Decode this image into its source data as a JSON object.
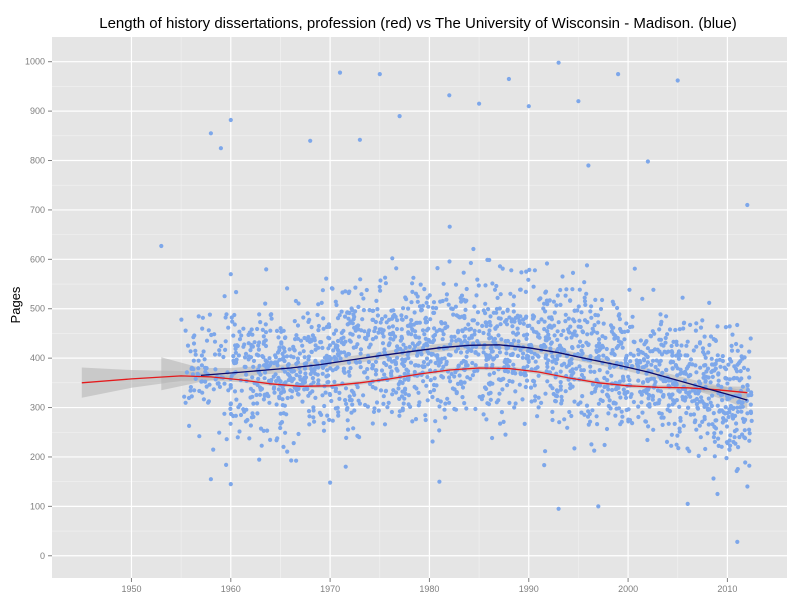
{
  "chart_data": {
    "type": "scatter",
    "title": "Length of history dissertations, profession (red) vs The University of Wisconsin - Madison. (blue)",
    "xlabel": "",
    "ylabel": "Pages",
    "xlim": [
      1942,
      2016
    ],
    "ylim": [
      -45,
      1050
    ],
    "x_ticks": [
      1950,
      1960,
      1970,
      1980,
      1990,
      2000,
      2010
    ],
    "y_ticks": [
      0,
      100,
      200,
      300,
      400,
      500,
      600,
      700,
      800,
      900,
      1000
    ],
    "grid": true,
    "legend": "none",
    "point_count": 2200,
    "series": [
      {
        "kind": "scatter",
        "color": "#7da7ea",
        "points": [
          [
            1953,
            627
          ],
          [
            1958,
            855
          ],
          [
            1959,
            825
          ],
          [
            1960,
            882
          ],
          [
            1960,
            570
          ],
          [
            1968,
            840
          ],
          [
            1971,
            978
          ],
          [
            1975,
            975
          ],
          [
            1973,
            842
          ],
          [
            1977,
            890
          ],
          [
            1982,
            932
          ],
          [
            1985,
            915
          ],
          [
            1988,
            965
          ],
          [
            1990,
            910
          ],
          [
            1993,
            998
          ],
          [
            1995,
            920
          ],
          [
            1999,
            975
          ],
          [
            2002,
            798
          ],
          [
            2005,
            962
          ],
          [
            1996,
            790
          ],
          [
            2012,
            710
          ],
          [
            2011,
            28
          ],
          [
            1993,
            95
          ],
          [
            2006,
            105
          ],
          [
            1981,
            150
          ],
          [
            1970,
            148
          ],
          [
            1960,
            145
          ],
          [
            1997,
            100
          ],
          [
            2009,
            125
          ],
          [
            1958,
            155
          ]
        ]
      },
      {
        "kind": "line",
        "color": "#e41a1c",
        "points": [
          [
            1945,
            350
          ],
          [
            1950,
            358
          ],
          [
            1955,
            364
          ],
          [
            1958,
            362
          ],
          [
            1961,
            356
          ],
          [
            1964,
            348
          ],
          [
            1967,
            343
          ],
          [
            1970,
            344
          ],
          [
            1973,
            350
          ],
          [
            1976,
            358
          ],
          [
            1979,
            368
          ],
          [
            1982,
            376
          ],
          [
            1985,
            380
          ],
          [
            1988,
            379
          ],
          [
            1991,
            372
          ],
          [
            1994,
            360
          ],
          [
            1997,
            350
          ],
          [
            2000,
            344
          ],
          [
            2003,
            341
          ],
          [
            2006,
            340
          ],
          [
            2009,
            336
          ],
          [
            2012,
            330
          ]
        ],
        "band": [
          [
            1945,
            320,
            381
          ],
          [
            1950,
            340,
            376
          ],
          [
            1955,
            354,
            374
          ],
          [
            1958,
            355,
            369
          ],
          [
            1961,
            351,
            361
          ],
          [
            1964,
            344,
            352
          ],
          [
            1967,
            339,
            347
          ],
          [
            1970,
            340,
            348
          ],
          [
            1973,
            346,
            354
          ],
          [
            1976,
            354,
            362
          ],
          [
            1979,
            364,
            372
          ],
          [
            1982,
            372,
            380
          ],
          [
            1985,
            376,
            384
          ],
          [
            1988,
            375,
            383
          ],
          [
            1991,
            368,
            376
          ],
          [
            1994,
            356,
            364
          ],
          [
            1997,
            346,
            354
          ],
          [
            2000,
            340,
            348
          ],
          [
            2003,
            337,
            345
          ],
          [
            2006,
            335,
            345
          ],
          [
            2009,
            329,
            343
          ],
          [
            2012,
            318,
            342
          ]
        ]
      },
      {
        "kind": "line",
        "color": "#0b0b6e",
        "points": [
          [
            1957,
            365
          ],
          [
            1960,
            370
          ],
          [
            1963,
            375
          ],
          [
            1966,
            380
          ],
          [
            1969,
            387
          ],
          [
            1972,
            396
          ],
          [
            1975,
            405
          ],
          [
            1978,
            413
          ],
          [
            1981,
            421
          ],
          [
            1984,
            426
          ],
          [
            1987,
            427
          ],
          [
            1990,
            421
          ],
          [
            1993,
            411
          ],
          [
            1996,
            398
          ],
          [
            1999,
            386
          ],
          [
            2002,
            372
          ],
          [
            2005,
            355
          ],
          [
            2008,
            338
          ],
          [
            2010,
            327
          ],
          [
            2012,
            315
          ]
        ],
        "band": [
          [
            1953,
            335,
            402
          ],
          [
            1957,
            352,
            380
          ],
          [
            1960,
            360,
            380
          ],
          [
            1963,
            366,
            384
          ],
          [
            1966,
            372,
            388
          ],
          [
            1969,
            379,
            395
          ],
          [
            1972,
            388,
            404
          ],
          [
            1975,
            397,
            413
          ],
          [
            1978,
            405,
            421
          ],
          [
            1981,
            413,
            429
          ],
          [
            1984,
            418,
            434
          ],
          [
            1987,
            419,
            435
          ],
          [
            1990,
            413,
            429
          ],
          [
            1993,
            403,
            419
          ],
          [
            1996,
            390,
            406
          ],
          [
            1999,
            378,
            394
          ],
          [
            2002,
            364,
            380
          ],
          [
            2005,
            346,
            364
          ],
          [
            2008,
            327,
            349
          ],
          [
            2010,
            313,
            341
          ],
          [
            2012,
            297,
            333
          ]
        ]
      }
    ]
  },
  "colors": {
    "panel": "#e5e5e5",
    "grid_major": "#ffffff",
    "grid_minor": "#f2f2f2",
    "points": "#7da7ea",
    "band": "#b3b3b3"
  }
}
